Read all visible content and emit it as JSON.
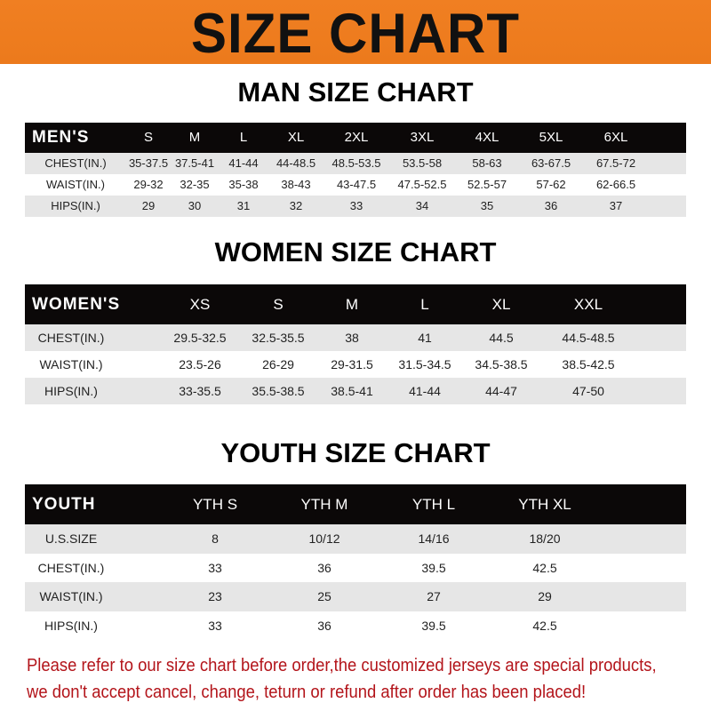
{
  "banner": {
    "title": "SIZE CHART",
    "color": "#ee7d20"
  },
  "men": {
    "title": "MAN SIZE CHART",
    "header": "MEN'S",
    "sizes": [
      "S",
      "M",
      "L",
      "XL",
      "2XL",
      "3XL",
      "4XL",
      "5XL",
      "6XL"
    ],
    "rows": [
      {
        "label": "CHEST(IN.)",
        "values": [
          "35-37.5",
          "37.5-41",
          "41-44",
          "44-48.5",
          "48.5-53.5",
          "53.5-58",
          "58-63",
          "63-67.5",
          "67.5-72"
        ]
      },
      {
        "label": "WAIST(IN.)",
        "values": [
          "29-32",
          "32-35",
          "35-38",
          "38-43",
          "43-47.5",
          "47.5-52.5",
          "52.5-57",
          "57-62",
          "62-66.5"
        ]
      },
      {
        "label": "HIPS(IN.)",
        "values": [
          "29",
          "30",
          "31",
          "32",
          "33",
          "34",
          "35",
          "36",
          "37"
        ]
      }
    ]
  },
  "women": {
    "title": "WOMEN SIZE CHART",
    "header": "WOMEN'S",
    "sizes": [
      "XS",
      "S",
      "M",
      "L",
      "XL",
      "XXL"
    ],
    "rows": [
      {
        "label": "CHEST(IN.)",
        "values": [
          "29.5-32.5",
          "32.5-35.5",
          "38",
          "41",
          "44.5",
          "44.5-48.5"
        ]
      },
      {
        "label": "WAIST(IN.)",
        "values": [
          "23.5-26",
          "26-29",
          "29-31.5",
          "31.5-34.5",
          "34.5-38.5",
          "38.5-42.5"
        ]
      },
      {
        "label": "HIPS(IN.)",
        "values": [
          "33-35.5",
          "35.5-38.5",
          "38.5-41",
          "41-44",
          "44-47",
          "47-50"
        ]
      }
    ]
  },
  "youth": {
    "title": "YOUTH SIZE CHART",
    "header": "YOUTH",
    "sizes": [
      "YTH S",
      "YTH M",
      "YTH L",
      "YTH XL"
    ],
    "rows": [
      {
        "label": "U.S.SIZE",
        "values": [
          "8",
          "10/12",
          "14/16",
          "18/20"
        ]
      },
      {
        "label": "CHEST(IN.)",
        "values": [
          "33",
          "36",
          "39.5",
          "42.5"
        ]
      },
      {
        "label": "WAIST(IN.)",
        "values": [
          "23",
          "25",
          "27",
          "29"
        ]
      },
      {
        "label": "HIPS(IN.)",
        "values": [
          "33",
          "36",
          "39.5",
          "42.5"
        ]
      }
    ]
  },
  "notice": {
    "line1": "Please refer to our size chart before order,the customized jerseys are special products,",
    "line2": "we don't accept cancel, change, teturn or refund after order has been placed!",
    "color": "#b3141a"
  }
}
